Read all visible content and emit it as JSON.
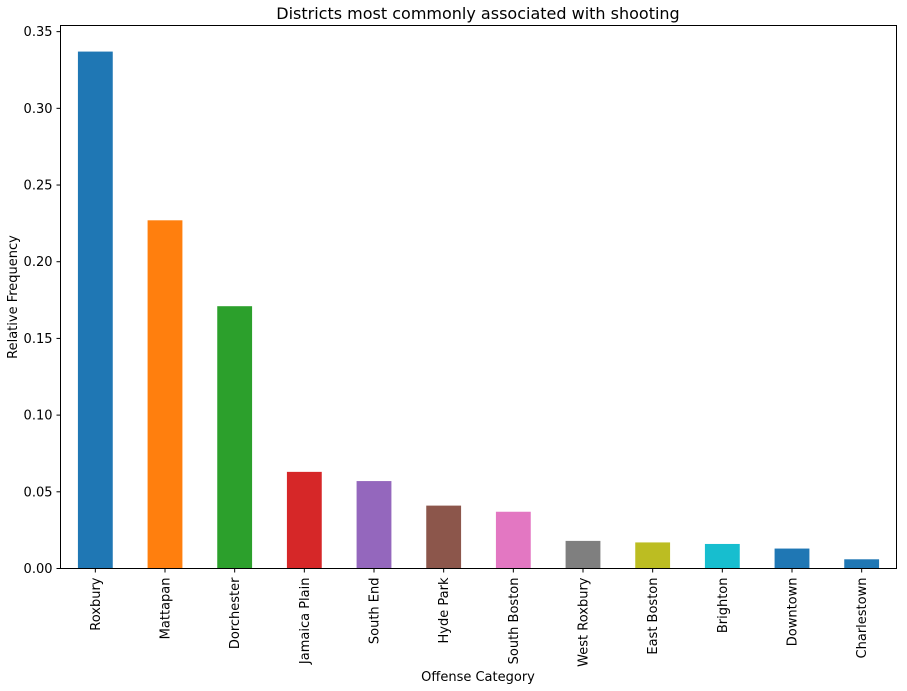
{
  "chart_data": {
    "type": "bar",
    "title": "Districts most commonly associated with shooting",
    "xlabel": "Offense Category",
    "ylabel": "Relative Frequency",
    "categories": [
      "Roxbury",
      "Mattapan",
      "Dorchester",
      "Jamaica Plain",
      "South End",
      "Hyde Park",
      "South Boston",
      "West Roxbury",
      "East Boston",
      "Brighton",
      "Downtown",
      "Charlestown"
    ],
    "values": [
      0.337,
      0.227,
      0.171,
      0.063,
      0.057,
      0.041,
      0.037,
      0.018,
      0.017,
      0.016,
      0.013,
      0.006
    ],
    "colors": [
      "#1f77b4",
      "#ff7f0e",
      "#2ca02c",
      "#d62728",
      "#9467bd",
      "#8c564b",
      "#e377c2",
      "#7f7f7f",
      "#bcbd22",
      "#17becf",
      "#1f77b4",
      "#1f77b4"
    ],
    "ylim": [
      0,
      0.354
    ],
    "yticks": [
      0.0,
      0.05,
      0.1,
      0.15,
      0.2,
      0.25,
      0.3,
      0.35
    ],
    "ytick_labels": [
      "0.00",
      "0.05",
      "0.10",
      "0.15",
      "0.20",
      "0.25",
      "0.30",
      "0.35"
    ],
    "grid": false,
    "legend": "none"
  }
}
